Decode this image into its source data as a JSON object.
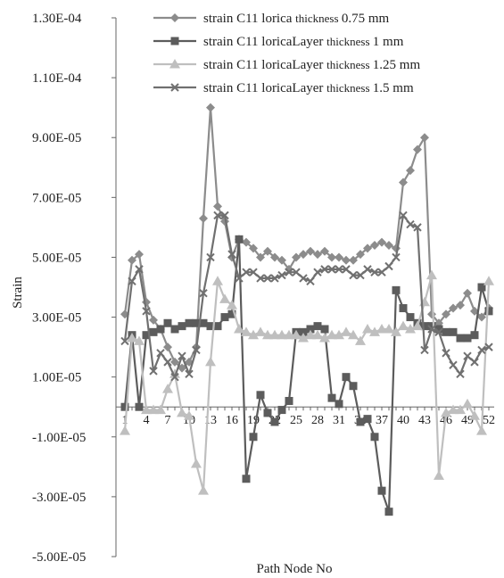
{
  "chart_data": {
    "type": "line",
    "xlabel": "Path Node No",
    "ylabel": "Strain",
    "ylim": [
      -5e-05,
      0.00013
    ],
    "yticks": [
      "1.30E-04",
      "1.10E-04",
      "9.00E-05",
      "7.00E-05",
      "5.00E-05",
      "3.00E-05",
      "1.00E-05",
      "-1.00E-05",
      "-3.00E-05",
      "-5.00E-05"
    ],
    "ytick_values": [
      0.00013,
      0.00011,
      9e-05,
      7e-05,
      5e-05,
      3e-05,
      1e-05,
      -1e-05,
      -3e-05,
      -5e-05
    ],
    "x": [
      1,
      2,
      3,
      4,
      5,
      6,
      7,
      8,
      9,
      10,
      11,
      12,
      13,
      14,
      15,
      16,
      17,
      18,
      19,
      20,
      21,
      22,
      23,
      24,
      25,
      26,
      27,
      28,
      29,
      30,
      31,
      32,
      33,
      34,
      35,
      36,
      37,
      38,
      39,
      40,
      41,
      42,
      43,
      44,
      45,
      46,
      47,
      48,
      49,
      50,
      51,
      52
    ],
    "xticks": [
      1,
      4,
      7,
      10,
      13,
      16,
      19,
      22,
      25,
      28,
      31,
      34,
      37,
      40,
      43,
      46,
      49,
      52
    ],
    "grid": false,
    "legend_position": "top-right",
    "series": [
      {
        "name_main": "strain C11 lorica",
        "name_small": "thickness",
        "name_tail": "0.75 mm",
        "color": "#8c8c8c",
        "marker": "diamond",
        "values": [
          3.1e-05,
          4.9e-05,
          5.1e-05,
          3.5e-05,
          2.9e-05,
          2.6e-05,
          2e-05,
          1.5e-05,
          1.3e-05,
          1.5e-05,
          2e-05,
          6.3e-05,
          0.0001,
          6.7e-05,
          6.2e-05,
          5e-05,
          5.6e-05,
          5.5e-05,
          5.3e-05,
          5e-05,
          5.2e-05,
          5e-05,
          4.9e-05,
          4.6e-05,
          5e-05,
          5.1e-05,
          5.2e-05,
          5.1e-05,
          5.2e-05,
          5e-05,
          5e-05,
          4.9e-05,
          4.9e-05,
          5.1e-05,
          5.3e-05,
          5.4e-05,
          5.5e-05,
          5.4e-05,
          5.3e-05,
          7.5e-05,
          7.9e-05,
          8.6e-05,
          9e-05,
          3.1e-05,
          2.8e-05,
          3.1e-05,
          3.3e-05,
          3.4e-05,
          3.8e-05,
          3.2e-05,
          3e-05,
          3.3e-05
        ]
      },
      {
        "name_main": "strain C11 loricaLayer",
        "name_small": "thickness",
        "name_tail": "1 mm",
        "color": "#5c5c5c",
        "marker": "square",
        "values": [
          0.0,
          2.4e-05,
          0.0,
          2.4e-05,
          2.5e-05,
          2.6e-05,
          2.8e-05,
          2.6e-05,
          2.7e-05,
          2.8e-05,
          2.8e-05,
          2.8e-05,
          2.7e-05,
          2.7e-05,
          3e-05,
          3.1e-05,
          5.6e-05,
          -2.4e-05,
          -1e-05,
          4e-06,
          -2e-06,
          -5e-06,
          -1e-06,
          2e-06,
          2.5e-05,
          2.5e-05,
          2.6e-05,
          2.7e-05,
          2.6e-05,
          3e-06,
          1e-06,
          1e-05,
          7e-06,
          -5e-06,
          -4e-06,
          -1e-05,
          -2.8e-05,
          -3.5e-05,
          3.9e-05,
          3.3e-05,
          3e-05,
          2.8e-05,
          2.7e-05,
          2.7e-05,
          2.6e-05,
          2.5e-05,
          2.5e-05,
          2.3e-05,
          2.3e-05,
          2.4e-05,
          4e-05,
          3.2e-05
        ]
      },
      {
        "name_main": "strain C11 loricaLayer",
        "name_small": "thickness",
        "name_tail": "1.25 mm",
        "color": "#bfbfbf",
        "marker": "triangle",
        "values": [
          -8e-06,
          2.3e-05,
          2.2e-05,
          -1e-06,
          -1e-06,
          -1e-06,
          6e-06,
          1.1e-05,
          -2e-06,
          -3e-06,
          -1.9e-05,
          -2.8e-05,
          1.5e-05,
          4.2e-05,
          3.6e-05,
          3.4e-05,
          2.6e-05,
          2.5e-05,
          2.4e-05,
          2.5e-05,
          2.4e-05,
          2.4e-05,
          2.4e-05,
          2.4e-05,
          2.4e-05,
          2.3e-05,
          2.4e-05,
          2.4e-05,
          2.3e-05,
          2.4e-05,
          2.4e-05,
          2.5e-05,
          2.4e-05,
          2.2e-05,
          2.6e-05,
          2.5e-05,
          2.6e-05,
          2.6e-05,
          2.5e-05,
          2.7e-05,
          2.6e-05,
          2.7e-05,
          3.5e-05,
          4.4e-05,
          -2.3e-05,
          -2e-06,
          -1e-06,
          -1e-06,
          1e-06,
          -3e-06,
          -8e-06,
          4.2e-05
        ]
      },
      {
        "name_main": "strain C11 loricaLayer",
        "name_small": "thickness",
        "name_tail": "1.5 mm",
        "color": "#707070",
        "marker": "x",
        "values": [
          2.2e-05,
          4.2e-05,
          4.6e-05,
          3.2e-05,
          1.2e-05,
          1.8e-05,
          1.5e-05,
          1e-05,
          1.7e-05,
          1.1e-05,
          1.9e-05,
          3.8e-05,
          5e-05,
          6.4e-05,
          6.4e-05,
          5.1e-05,
          4.3e-05,
          4.5e-05,
          4.5e-05,
          4.3e-05,
          4.3e-05,
          4.3e-05,
          4.4e-05,
          4.5e-05,
          4.5e-05,
          4.3e-05,
          4.2e-05,
          4.5e-05,
          4.6e-05,
          4.6e-05,
          4.6e-05,
          4.6e-05,
          4.4e-05,
          4.4e-05,
          4.6e-05,
          4.5e-05,
          4.5e-05,
          4.7e-05,
          5e-05,
          6.4e-05,
          6.1e-05,
          6e-05,
          1.9e-05,
          2.6e-05,
          2.5e-05,
          1.8e-05,
          1.4e-05,
          1.1e-05,
          1.7e-05,
          1.5e-05,
          1.9e-05,
          2e-05
        ]
      }
    ]
  }
}
